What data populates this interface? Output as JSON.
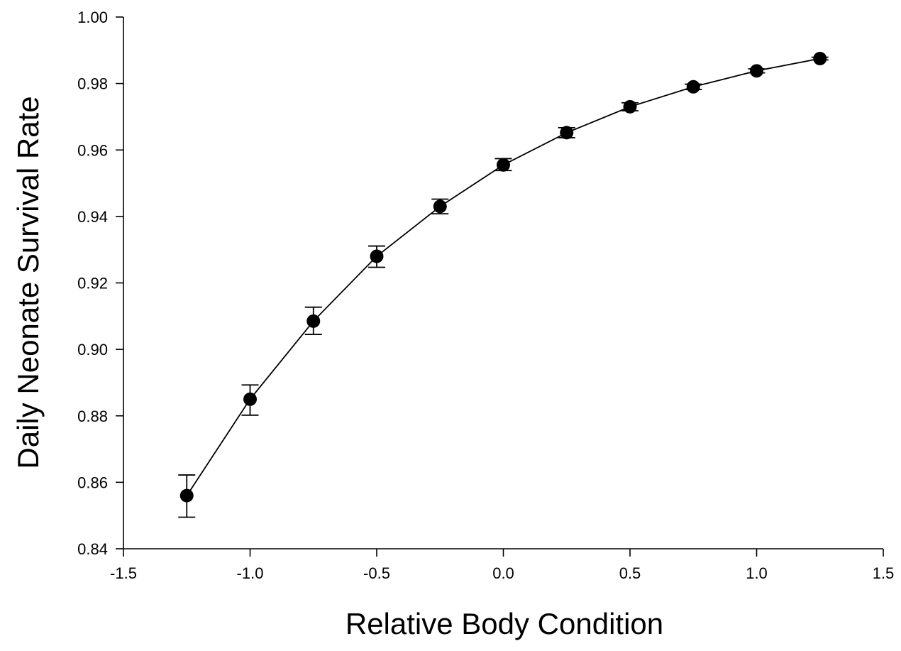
{
  "chart_data": {
    "type": "line",
    "title": "",
    "xlabel": "Relative Body Condition",
    "ylabel": "Daily Neonate Survival Rate",
    "xlim": [
      -1.5,
      1.5
    ],
    "ylim": [
      0.84,
      1.0
    ],
    "x_ticks": [
      -1.5,
      -1.0,
      -0.5,
      0.0,
      0.5,
      1.0,
      1.5
    ],
    "x_tick_labels": [
      "-1.5",
      "-1.0",
      "-0.5",
      "0.0",
      "0.5",
      "1.0",
      "1.5"
    ],
    "y_ticks": [
      0.84,
      0.86,
      0.88,
      0.9,
      0.92,
      0.94,
      0.96,
      0.98,
      1.0
    ],
    "y_tick_labels": [
      "0.84",
      "0.86",
      "0.88",
      "0.90",
      "0.92",
      "0.94",
      "0.96",
      "0.98",
      "1.00"
    ],
    "grid": false,
    "legend": "none",
    "marker": "filled-circle",
    "error_bars": true,
    "colors": {
      "line": "#000000",
      "marker": "#000000",
      "axes": "#000000",
      "background": "#ffffff"
    },
    "series": [
      {
        "points": [
          {
            "x": -1.25,
            "y": 0.856,
            "err_low": 0.8495,
            "err_high": 0.8622
          },
          {
            "x": -1.0,
            "y": 0.885,
            "err_low": 0.8802,
            "err_high": 0.8893
          },
          {
            "x": -0.75,
            "y": 0.9085,
            "err_low": 0.9045,
            "err_high": 0.9127
          },
          {
            "x": -0.5,
            "y": 0.928,
            "err_low": 0.9247,
            "err_high": 0.9311
          },
          {
            "x": -0.25,
            "y": 0.943,
            "err_low": 0.9408,
            "err_high": 0.9452
          },
          {
            "x": 0.0,
            "y": 0.9555,
            "err_low": 0.9538,
            "err_high": 0.9574
          },
          {
            "x": 0.25,
            "y": 0.9652,
            "err_low": 0.9637,
            "err_high": 0.9667
          },
          {
            "x": 0.5,
            "y": 0.973,
            "err_low": 0.9718,
            "err_high": 0.9742
          },
          {
            "x": 0.75,
            "y": 0.979,
            "err_low": 0.9782,
            "err_high": 0.9798
          },
          {
            "x": 1.0,
            "y": 0.9838,
            "err_low": 0.9832,
            "err_high": 0.9844
          },
          {
            "x": 1.25,
            "y": 0.9875,
            "err_low": 0.9871,
            "err_high": 0.9879
          }
        ]
      }
    ]
  }
}
